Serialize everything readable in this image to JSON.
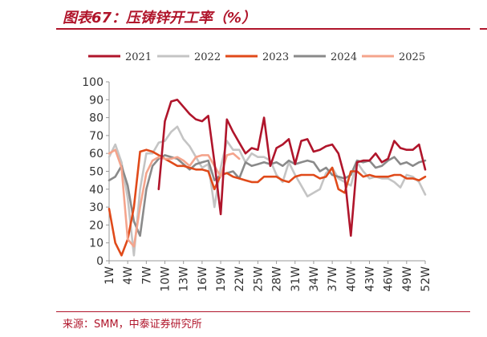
{
  "title": "图表67：压铸锌开工率（%）",
  "source": "来源：SMM，中泰证券研究所",
  "chart_data": {
    "type": "line",
    "title": "图表67：压铸锌开工率（%）",
    "xlabel": "",
    "ylabel": "",
    "ylim": [
      0,
      100
    ],
    "yticks": [
      0,
      10,
      20,
      30,
      40,
      50,
      60,
      70,
      80,
      90,
      100
    ],
    "xticks": [
      "1W",
      "4W",
      "7W",
      "10W",
      "13W",
      "16W",
      "19W",
      "22W",
      "25W",
      "28W",
      "31W",
      "34W",
      "37W",
      "40W",
      "43W",
      "46W",
      "49W",
      "52W"
    ],
    "legend_position": "top",
    "series": [
      {
        "name": "2021",
        "color": "#b0152b",
        "values": [
          null,
          null,
          null,
          null,
          null,
          null,
          null,
          null,
          40,
          78,
          89,
          90,
          86,
          82,
          79,
          78,
          81,
          55,
          26,
          79,
          72,
          66,
          60,
          63,
          62,
          80,
          53,
          63,
          65,
          68,
          54,
          67,
          68,
          61,
          62,
          64,
          65,
          60,
          47,
          14,
          55,
          56,
          56,
          60,
          55,
          57,
          67,
          63,
          62,
          62,
          65,
          51
        ]
      },
      {
        "name": "2022",
        "color": "#c4c4c4",
        "values": [
          58,
          65,
          55,
          35,
          3,
          40,
          60,
          60,
          66,
          67,
          72,
          75,
          68,
          64,
          58,
          52,
          54,
          30,
          52,
          67,
          62,
          62,
          55,
          60,
          58,
          58,
          56,
          48,
          44,
          55,
          48,
          42,
          36,
          38,
          40,
          49,
          52,
          46,
          44,
          42,
          55,
          50,
          46,
          47,
          46,
          46,
          44,
          41,
          48,
          47,
          44,
          37
        ]
      },
      {
        "name": "2023",
        "color": "#e04a1a",
        "values": [
          29,
          10,
          3,
          12,
          30,
          61,
          62,
          61,
          59,
          57,
          55,
          53,
          53,
          52,
          51,
          51,
          50,
          40,
          48,
          49,
          47,
          46,
          45,
          44,
          44,
          47,
          47,
          47,
          45,
          44,
          47,
          48,
          48,
          48,
          46,
          47,
          52,
          40,
          38,
          50,
          50,
          47,
          48,
          47,
          47,
          47,
          48,
          48,
          46,
          46,
          45,
          47
        ]
      },
      {
        "name": "2024",
        "color": "#8a8a8a",
        "values": [
          45,
          47,
          53,
          42,
          22,
          14,
          40,
          53,
          57,
          59,
          58,
          57,
          54,
          51,
          54,
          55,
          56,
          45,
          48,
          49,
          50,
          46,
          55,
          53,
          54,
          55,
          54,
          55,
          53,
          56,
          54,
          55,
          56,
          55,
          50,
          52,
          48,
          47,
          46,
          48,
          56,
          55,
          56,
          52,
          53,
          56,
          58,
          54,
          55,
          53,
          55,
          56
        ]
      },
      {
        "name": "2025",
        "color": "#f4a48c",
        "values": [
          60,
          62,
          52,
          12,
          8,
          30,
          49,
          56,
          58,
          57,
          57,
          58,
          56,
          53,
          58,
          59,
          59,
          53,
          47,
          59,
          60,
          57,
          null,
          null,
          null,
          null,
          null,
          null,
          null,
          null,
          null,
          null,
          null,
          null,
          null,
          null,
          null,
          null,
          null,
          null,
          null,
          null,
          null,
          null,
          null,
          null,
          null,
          null,
          null,
          null,
          null,
          null
        ]
      }
    ]
  }
}
